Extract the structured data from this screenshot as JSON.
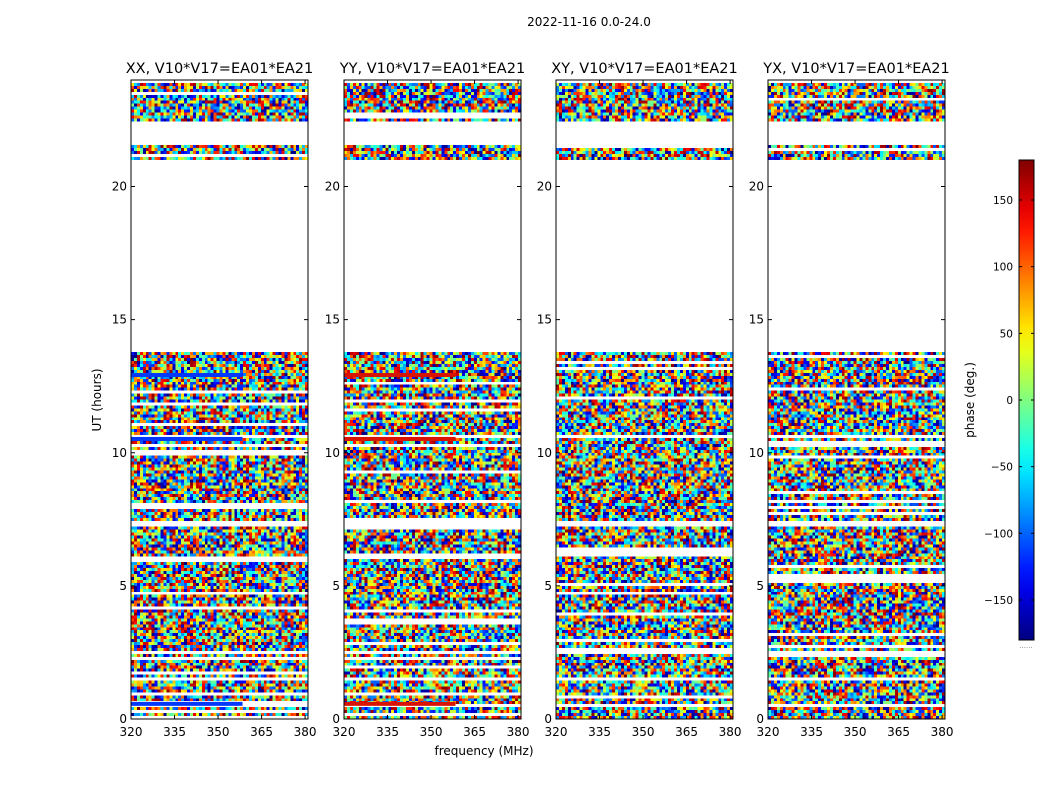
{
  "chart_data": {
    "type": "heatmap",
    "suptitle": "2022-11-16 0.0-24.0",
    "xlabel": "frequency (MHz)",
    "ylabel": "UT (hours)",
    "xlim": [
      320,
      381
    ],
    "ylim": [
      0,
      24
    ],
    "xticks": [
      320,
      335,
      350,
      365,
      380
    ],
    "yticks": [
      0,
      5,
      10,
      15,
      20
    ],
    "panels": [
      {
        "title": "XX, V10*V17=EA01*EA21",
        "band_color": "#0038ff"
      },
      {
        "title": "YY, V10*V17=EA01*EA21",
        "band_color": "#d81400"
      },
      {
        "title": "XY, V10*V17=EA01*EA21",
        "band_color": ""
      },
      {
        "title": "YX, V10*V17=EA01*EA21",
        "band_color": ""
      }
    ],
    "data_ranges_hours": [
      [
        0.0,
        0.5
      ],
      [
        0.6,
        1.4
      ],
      [
        1.6,
        2.4
      ],
      [
        2.6,
        7.2
      ],
      [
        7.4,
        10.6
      ],
      [
        10.7,
        13.8
      ],
      [
        21.0,
        21.6
      ],
      [
        22.4,
        23.9
      ]
    ],
    "blank_ranges_hours": [
      [
        13.8,
        21.0
      ],
      [
        21.6,
        22.4
      ]
    ],
    "colorbar": {
      "label": "phase (deg.)",
      "range": [
        -180,
        180
      ],
      "ticks": [
        -150,
        -100,
        -50,
        0,
        50,
        100,
        150
      ],
      "tick_labels": [
        "−150",
        "−100",
        "−50",
        "0",
        "50",
        "100",
        "150"
      ],
      "footer": "......"
    }
  }
}
